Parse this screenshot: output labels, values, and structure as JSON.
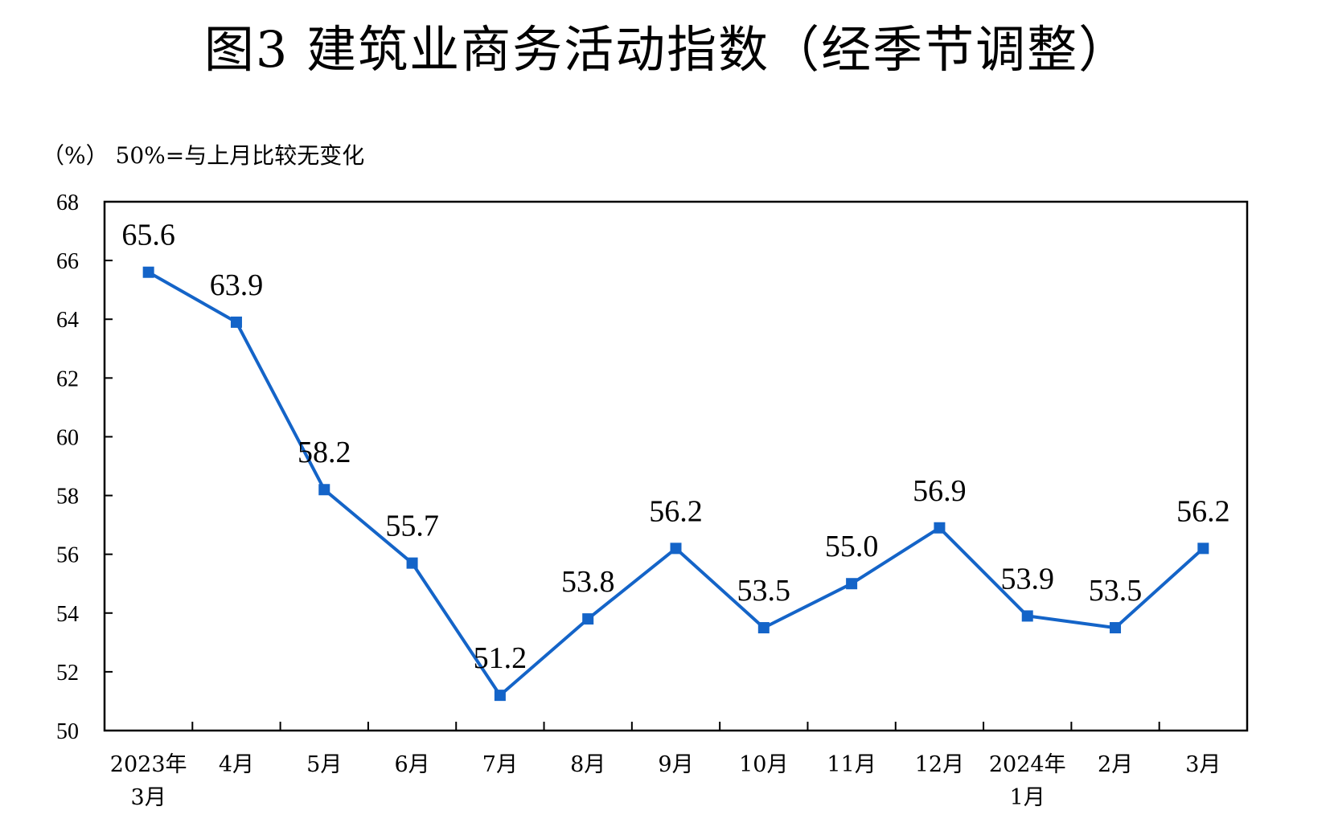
{
  "chart_data": {
    "type": "line",
    "title": "图3  建筑业商务活动指数（经季节调整）",
    "unit_label": "（%）",
    "note": "50%=与上月比较无变化",
    "categories": [
      [
        "2023年",
        "3月"
      ],
      [
        "4月"
      ],
      [
        "5月"
      ],
      [
        "6月"
      ],
      [
        "7月"
      ],
      [
        "8月"
      ],
      [
        "9月"
      ],
      [
        "10月"
      ],
      [
        "11月"
      ],
      [
        "12月"
      ],
      [
        "2024年",
        "1月"
      ],
      [
        "2月"
      ],
      [
        "3月"
      ]
    ],
    "series": [
      {
        "values": [
          65.6,
          63.9,
          58.2,
          55.7,
          51.2,
          53.8,
          56.2,
          53.5,
          55.0,
          56.9,
          53.9,
          53.5,
          56.2
        ],
        "labels": [
          "65.6",
          "63.9",
          "58.2",
          "55.7",
          "51.2",
          "53.8",
          "56.2",
          "53.5",
          "55.0",
          "56.9",
          "53.9",
          "53.5",
          "56.2"
        ],
        "color": "#1464c8"
      }
    ],
    "ylim": [
      50,
      68
    ],
    "yticks": [
      "50",
      "52",
      "54",
      "56",
      "58",
      "60",
      "62",
      "64",
      "66",
      "68"
    ],
    "xlabel": "",
    "ylabel": "",
    "grid": false,
    "legend": "none"
  },
  "colors": {
    "axis": "#000000",
    "line": "#1464c8",
    "marker": "#1464c8"
  }
}
